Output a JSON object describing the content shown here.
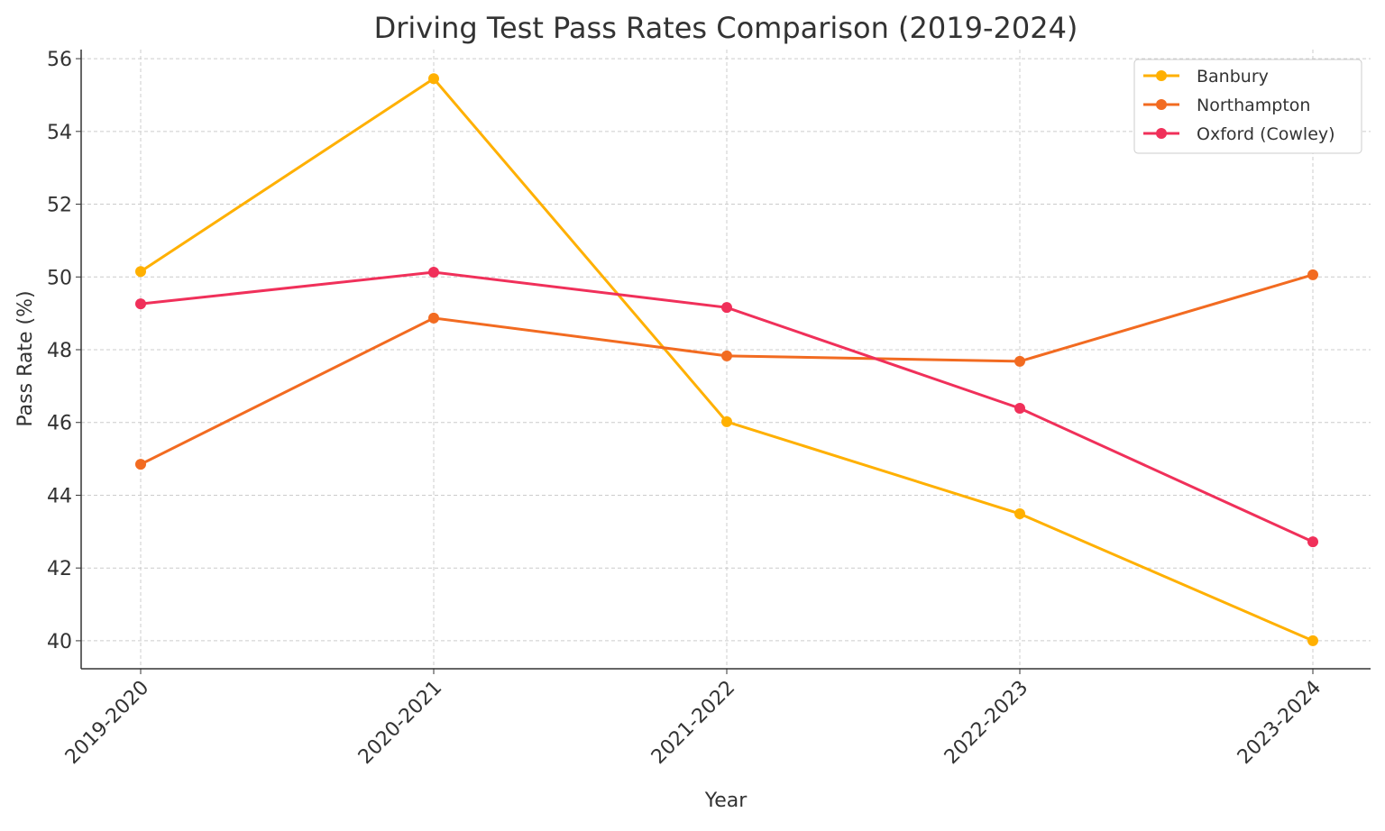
{
  "chart_data": {
    "type": "line",
    "title": "Driving Test Pass Rates Comparison (2019-2024)",
    "xlabel": "Year",
    "ylabel": "Pass Rate (%)",
    "categories": [
      "2019-2020",
      "2020-2021",
      "2021-2022",
      "2022-2023",
      "2023-2024"
    ],
    "yticks": [
      40,
      42,
      44,
      46,
      48,
      50,
      52,
      54,
      56
    ],
    "ylim": [
      39.23,
      56.25
    ],
    "grid": true,
    "legend_position": "top-right",
    "series": [
      {
        "name": "Banbury",
        "color": "#FFB000",
        "values": [
          50.15,
          55.45,
          46.02,
          43.49,
          40.0
        ]
      },
      {
        "name": "Northampton",
        "color": "#F26B21",
        "values": [
          44.85,
          48.87,
          47.83,
          47.68,
          50.06
        ]
      },
      {
        "name": "Oxford (Cowley)",
        "color": "#F0305A",
        "values": [
          49.26,
          50.13,
          49.16,
          46.39,
          42.72
        ]
      }
    ]
  }
}
